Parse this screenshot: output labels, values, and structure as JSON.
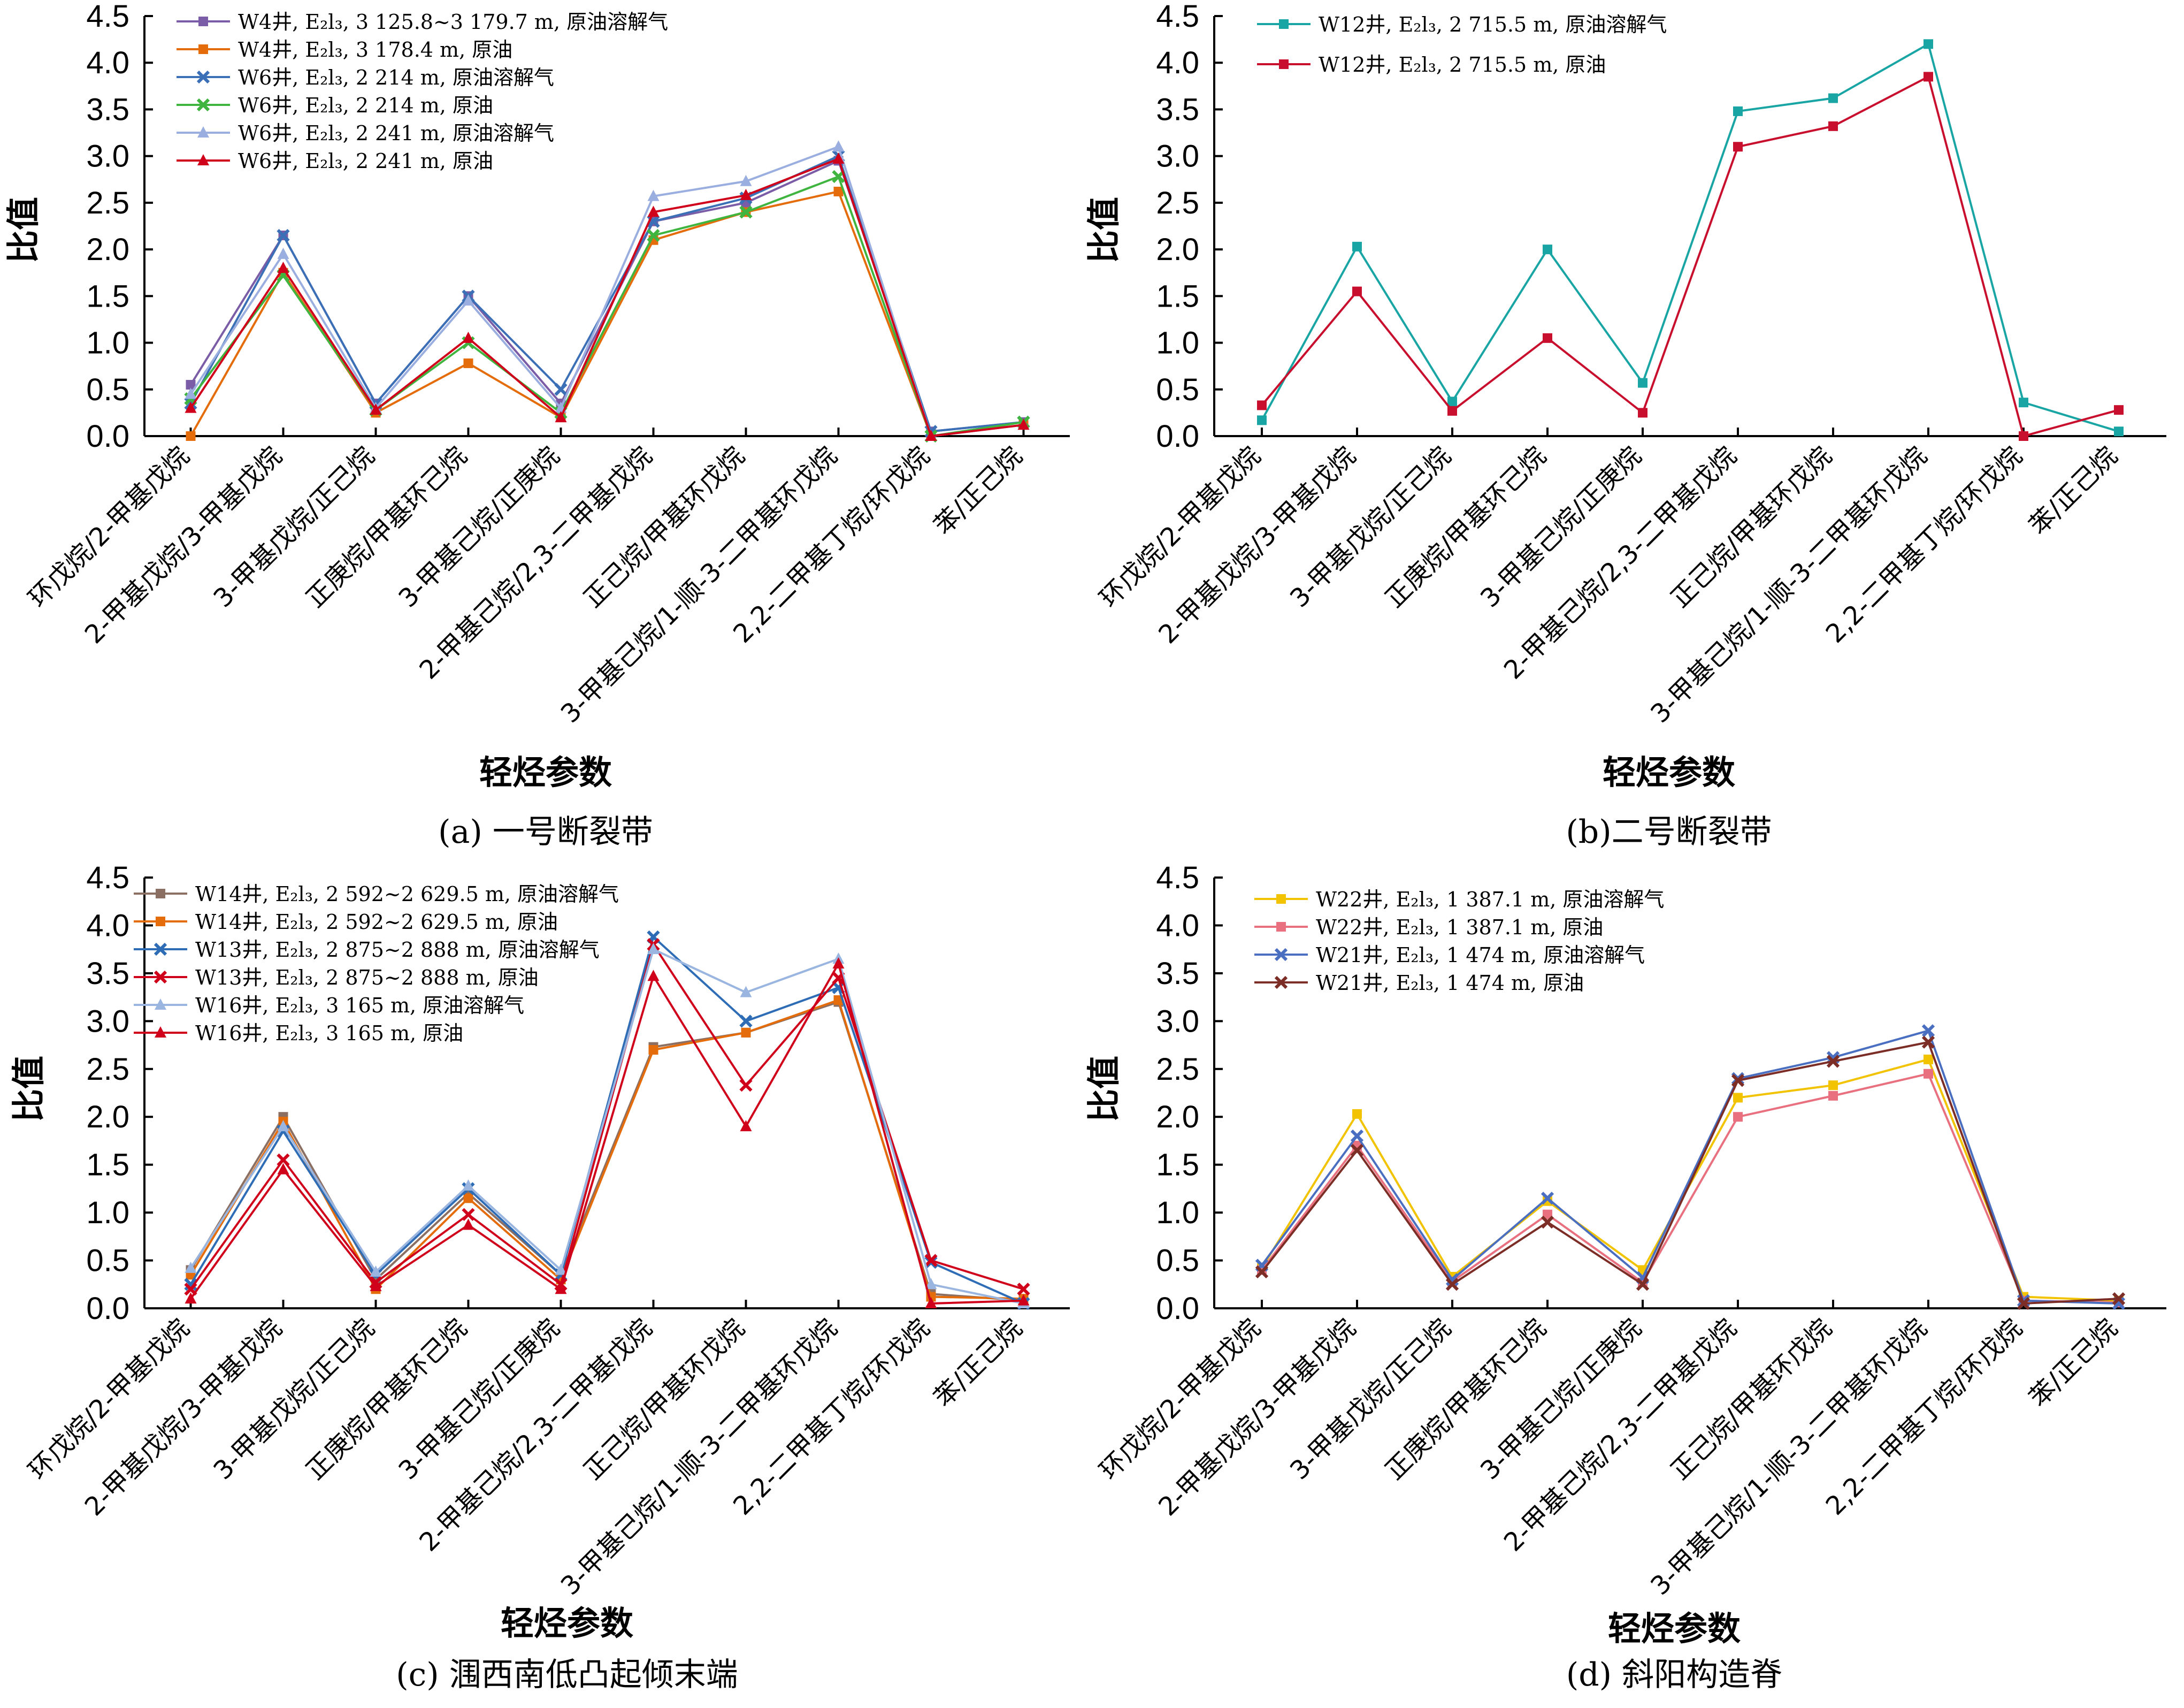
{
  "panels": [
    {
      "caption": "(a) 一号断裂带",
      "chart_data": {
        "type": "line",
        "categories": [
          "环戊烷/2-甲基戊烷",
          "2-甲基戊烷/3-甲基戊烷",
          "3-甲基戊烷/正己烷",
          "正庚烷/甲基环己烷",
          "3-甲基己烷/正庚烷",
          "2-甲基己烷/2,3-二甲基戊烷",
          "正己烷/甲基环戊烷",
          "3-甲基己烷/1-顺-3-二甲基环戊烷",
          "2,2-二甲基丁烷/环戊烷",
          "苯/正己烷"
        ],
        "xlabel": "轻烃参数",
        "ylabel": "比值",
        "ylim": [
          0,
          4.5
        ],
        "yticks": [
          "0.0",
          "0.5",
          "1.0",
          "1.5",
          "2.0",
          "2.5",
          "3.0",
          "3.5",
          "4.0",
          "4.5"
        ],
        "legend_position": "top-left",
        "series": [
          {
            "name": "W4井, E₂l₃, 3 125.8~3 179.7 m, 原油溶解气",
            "color": "#7b5ca6",
            "marker": "square",
            "values": [
              0.55,
              2.15,
              0.35,
              1.5,
              0.35,
              2.3,
              2.5,
              2.95,
              0.05,
              0.15
            ]
          },
          {
            "name": "W4井, E₂l₃, 3 178.4 m, 原油",
            "color": "#e46c0a",
            "marker": "square",
            "values": [
              0.0,
              1.75,
              0.25,
              0.78,
              0.2,
              2.1,
              2.4,
              2.62,
              0.0,
              0.12
            ]
          },
          {
            "name": "W6井, E₂l₃, 2 214 m, 原油溶解气",
            "color": "#3b6fb6",
            "marker": "x",
            "values": [
              0.35,
              2.15,
              0.35,
              1.5,
              0.5,
              2.3,
              2.55,
              3.0,
              0.05,
              0.15
            ]
          },
          {
            "name": "W6井, E₂l₃, 2 214 m, 原油",
            "color": "#3fb53f",
            "marker": "x",
            "values": [
              0.4,
              1.72,
              0.28,
              1.0,
              0.25,
              2.15,
              2.4,
              2.78,
              0.0,
              0.15
            ]
          },
          {
            "name": "W6井, E₂l₃, 2 241 m, 原油溶解气",
            "color": "#9aaee0",
            "marker": "triangle",
            "values": [
              0.45,
              1.95,
              0.3,
              1.45,
              0.3,
              2.57,
              2.73,
              3.1,
              0.0,
              0.12
            ]
          },
          {
            "name": "W6井, E₂l₃, 2 241 m, 原油",
            "color": "#d0021b",
            "marker": "triangle",
            "values": [
              0.3,
              1.8,
              0.28,
              1.05,
              0.2,
              2.4,
              2.58,
              2.97,
              0.0,
              0.12
            ]
          }
        ]
      }
    },
    {
      "caption": "(b)二号断裂带",
      "chart_data": {
        "type": "line",
        "categories": [
          "环戊烷/2-甲基戊烷",
          "2-甲基戊烷/3-甲基戊烷",
          "3-甲基戊烷/正己烷",
          "正庚烷/甲基环己烷",
          "3-甲基己烷/正庚烷",
          "2-甲基己烷/2,3-二甲基戊烷",
          "正己烷/甲基环戊烷",
          "3-甲基己烷/1-顺-3-二甲基环戊烷",
          "2,2-二甲基丁烷/环戊烷",
          "苯/正己烷"
        ],
        "xlabel": "轻烃参数",
        "ylabel": "比值",
        "ylim": [
          0,
          4.5
        ],
        "yticks": [
          "0.0",
          "0.5",
          "1.0",
          "1.5",
          "2.0",
          "2.5",
          "3.0",
          "3.5",
          "4.0",
          "4.5"
        ],
        "legend_position": "top-left",
        "series": [
          {
            "name": "W12井, E₂l₃, 2 715.5 m, 原油溶解气",
            "color": "#1aa5a5",
            "marker": "square",
            "values": [
              0.17,
              2.03,
              0.37,
              2.0,
              0.57,
              3.48,
              3.62,
              4.2,
              0.36,
              0.05
            ]
          },
          {
            "name": "W12井, E₂l₃, 2 715.5 m, 原油",
            "color": "#c8102e",
            "marker": "square",
            "values": [
              0.33,
              1.55,
              0.27,
              1.05,
              0.25,
              3.1,
              3.32,
              3.85,
              0.0,
              0.28
            ]
          }
        ]
      }
    },
    {
      "caption": "(c) 涠西南低凸起倾末端",
      "chart_data": {
        "type": "line",
        "categories": [
          "环戊烷/2-甲基戊烷",
          "2-甲基戊烷/3-甲基戊烷",
          "3-甲基戊烷/正己烷",
          "正庚烷/甲基环己烷",
          "3-甲基己烷/正庚烷",
          "2-甲基己烷/2,3-二甲基戊烷",
          "正己烷/甲基环戊烷",
          "3-甲基己烷/1-顺-3-二甲基环戊烷",
          "2,2-二甲基丁烷/环戊烷",
          "苯/正己烷"
        ],
        "xlabel": "轻烃参数",
        "ylabel": "比值",
        "ylim": [
          0,
          4.5
        ],
        "yticks": [
          "0.0",
          "0.5",
          "1.0",
          "1.5",
          "2.0",
          "2.5",
          "3.0",
          "3.5",
          "4.0",
          "4.5"
        ],
        "legend_position": "top-left",
        "series": [
          {
            "name": "W14井, E₂l₃, 2 592~2 629.5 m, 原油溶解气",
            "color": "#8c6f63",
            "marker": "square",
            "values": [
              0.4,
              2.0,
              0.3,
              1.2,
              0.35,
              2.73,
              2.88,
              3.2,
              0.15,
              0.08
            ]
          },
          {
            "name": "W14井, E₂l₃, 2 592~2 629.5 m, 原油",
            "color": "#e46c0a",
            "marker": "square",
            "values": [
              0.35,
              1.95,
              0.2,
              1.15,
              0.3,
              2.7,
              2.88,
              3.22,
              0.12,
              0.1
            ]
          },
          {
            "name": "W13井, E₂l₃, 2 875~2 888 m, 原油溶解气",
            "color": "#2e6db5",
            "marker": "x",
            "values": [
              0.25,
              1.85,
              0.35,
              1.25,
              0.35,
              3.88,
              3.0,
              3.35,
              0.48,
              0.05
            ]
          },
          {
            "name": "W13井, E₂l₃, 2 875~2 888 m, 原油",
            "color": "#d0021b",
            "marker": "x",
            "values": [
              0.2,
              1.55,
              0.27,
              0.98,
              0.25,
              3.8,
              2.33,
              3.45,
              0.5,
              0.2
            ]
          },
          {
            "name": "W16井, E₂l₃, 3 165 m, 原油溶解气",
            "color": "#9ab6e0",
            "marker": "triangle",
            "values": [
              0.42,
              1.9,
              0.38,
              1.28,
              0.4,
              3.75,
              3.3,
              3.65,
              0.25,
              0.05
            ]
          },
          {
            "name": "W16井, E₂l₃, 3 165 m, 原油",
            "color": "#d0021b",
            "marker": "triangle",
            "values": [
              0.1,
              1.45,
              0.23,
              0.87,
              0.2,
              3.47,
              1.9,
              3.6,
              0.05,
              0.08
            ]
          }
        ]
      }
    },
    {
      "caption": "(d) 斜阳构造脊",
      "chart_data": {
        "type": "line",
        "categories": [
          "环戊烷/2-甲基戊烷",
          "2-甲基戊烷/3-甲基戊烷",
          "3-甲基戊烷/正己烷",
          "正庚烷/甲基环己烷",
          "3-甲基己烷/正庚烷",
          "2-甲基己烷/2,3-二甲基戊烷",
          "正己烷/甲基环戊烷",
          "3-甲基己烷/1-顺-3-二甲基环戊烷",
          "2,2-二甲基丁烷/环戊烷",
          "苯/正己烷"
        ],
        "xlabel": "轻烃参数",
        "ylabel": "比值",
        "ylim": [
          0,
          4.5
        ],
        "yticks": [
          "0.0",
          "0.5",
          "1.0",
          "1.5",
          "2.0",
          "2.5",
          "3.0",
          "3.5",
          "4.0",
          "4.5"
        ],
        "legend_position": "top-left",
        "series": [
          {
            "name": "W22井, E₂l₃, 1 387.1 m, 原油溶解气",
            "color": "#f2c300",
            "marker": "square",
            "values": [
              0.42,
              2.03,
              0.33,
              1.12,
              0.4,
              2.2,
              2.33,
              2.6,
              0.12,
              0.08
            ]
          },
          {
            "name": "W22井, E₂l₃, 1 387.1 m, 原油",
            "color": "#e8707f",
            "marker": "square",
            "values": [
              0.4,
              1.7,
              0.28,
              0.98,
              0.27,
              2.0,
              2.22,
              2.45,
              0.08,
              0.06
            ]
          },
          {
            "name": "W21井, E₂l₃, 1 474 m, 原油溶解气",
            "color": "#4a6fc1",
            "marker": "x",
            "values": [
              0.45,
              1.8,
              0.3,
              1.15,
              0.32,
              2.4,
              2.62,
              2.9,
              0.08,
              0.05
            ]
          },
          {
            "name": "W21井, E₂l₃, 1 474 m, 原油",
            "color": "#7b2d26",
            "marker": "x",
            "values": [
              0.38,
              1.65,
              0.25,
              0.9,
              0.25,
              2.38,
              2.58,
              2.78,
              0.05,
              0.1
            ]
          }
        ]
      }
    }
  ]
}
